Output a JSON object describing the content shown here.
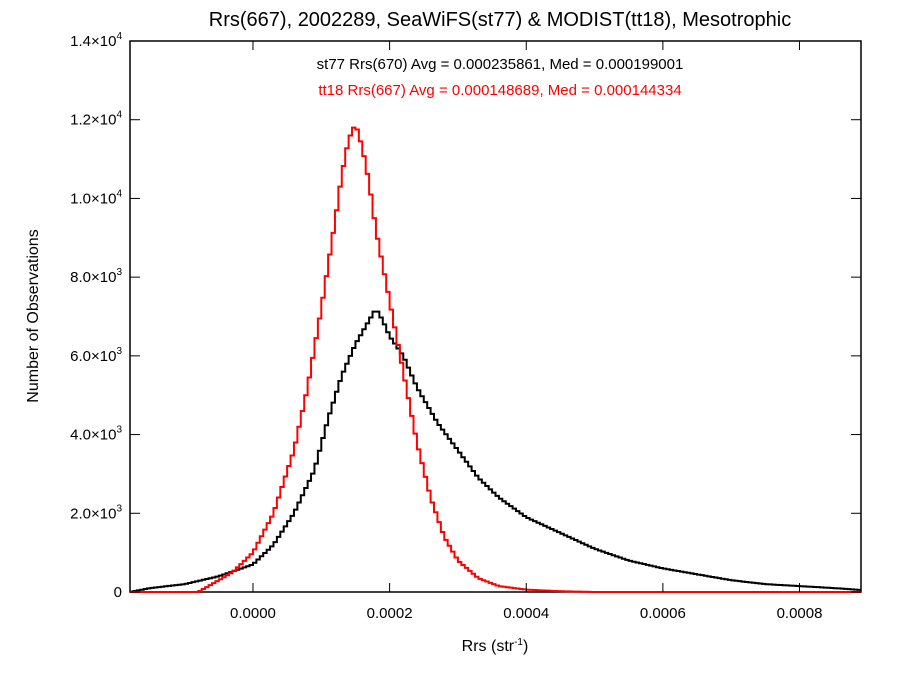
{
  "chart_data": {
    "type": "line",
    "title": "Rrs(667), 2002289, SeaWiFS(st77) & MODIST(tt18), Mesotrophic",
    "xlabel_base": "Rrs (str",
    "xlabel_sup": "-1",
    "xlabel_close": ")",
    "ylabel": "Number of Observations",
    "xlim": [
      -0.00018,
      0.00089
    ],
    "ylim": [
      0,
      14000
    ],
    "x_ticks": [
      {
        "value": 0.0,
        "label": "0.0000"
      },
      {
        "value": 0.0002,
        "label": "0.0002"
      },
      {
        "value": 0.0004,
        "label": "0.0004"
      },
      {
        "value": 0.0006,
        "label": "0.0006"
      },
      {
        "value": 0.0008,
        "label": "0.0008"
      }
    ],
    "y_ticks": [
      {
        "value": 0,
        "mant": "0",
        "exp": ""
      },
      {
        "value": 2000,
        "mant": "2.0×10",
        "exp": "3"
      },
      {
        "value": 4000,
        "mant": "4.0×10",
        "exp": "3"
      },
      {
        "value": 6000,
        "mant": "6.0×10",
        "exp": "3"
      },
      {
        "value": 8000,
        "mant": "8.0×10",
        "exp": "3"
      },
      {
        "value": 10000,
        "mant": "1.0×10",
        "exp": "4"
      },
      {
        "value": 12000,
        "mant": "1.2×10",
        "exp": "4"
      },
      {
        "value": 14000,
        "mant": "1.4×10",
        "exp": "4"
      }
    ],
    "legend": [
      {
        "text": "st77 Rrs(670) Avg = 0.000235861, Med = 0.000199001",
        "color": "#000000"
      },
      {
        "text": "tt18 Rrs(667) Avg = 0.000148689, Med = 0.000144334",
        "color": "#ff0000"
      }
    ],
    "series": [
      {
        "color": "#000000",
        "points": [
          [
            -0.00018,
            0
          ],
          [
            -0.00015,
            100
          ],
          [
            -0.0001,
            200
          ],
          [
            -5e-05,
            400
          ],
          [
            0.0,
            700
          ],
          [
            3e-05,
            1200
          ],
          [
            6e-05,
            2000
          ],
          [
            9e-05,
            3100
          ],
          [
            0.00011,
            4400
          ],
          [
            0.00013,
            5500
          ],
          [
            0.00015,
            6300
          ],
          [
            0.00017,
            6900
          ],
          [
            0.00018,
            7200
          ],
          [
            0.00019,
            6900
          ],
          [
            0.0002,
            6500
          ],
          [
            0.00022,
            6000
          ],
          [
            0.00024,
            5200
          ],
          [
            0.00027,
            4300
          ],
          [
            0.0003,
            3600
          ],
          [
            0.00033,
            2900
          ],
          [
            0.00036,
            2400
          ],
          [
            0.0004,
            1900
          ],
          [
            0.00045,
            1500
          ],
          [
            0.0005,
            1100
          ],
          [
            0.00055,
            800
          ],
          [
            0.0006,
            600
          ],
          [
            0.00065,
            450
          ],
          [
            0.0007,
            300
          ],
          [
            0.00075,
            200
          ],
          [
            0.0008,
            150
          ],
          [
            0.00085,
            100
          ],
          [
            0.00089,
            50
          ]
        ]
      },
      {
        "color": "#ff0000",
        "points": [
          [
            -0.00018,
            0
          ],
          [
            -8e-05,
            0
          ],
          [
            -6e-05,
            200
          ],
          [
            -3e-05,
            500
          ],
          [
            0.0,
            1000
          ],
          [
            3e-05,
            2000
          ],
          [
            6e-05,
            3600
          ],
          [
            8e-05,
            5200
          ],
          [
            0.0001,
            7200
          ],
          [
            0.00012,
            9400
          ],
          [
            0.00013,
            10600
          ],
          [
            0.00014,
            11500
          ],
          [
            0.00015,
            11900
          ],
          [
            0.00016,
            11300
          ],
          [
            0.00017,
            10400
          ],
          [
            0.00018,
            9200
          ],
          [
            0.0002,
            7400
          ],
          [
            0.00022,
            5600
          ],
          [
            0.00024,
            3800
          ],
          [
            0.00026,
            2400
          ],
          [
            0.00028,
            1400
          ],
          [
            0.0003,
            800
          ],
          [
            0.00033,
            350
          ],
          [
            0.00036,
            150
          ],
          [
            0.0004,
            60
          ],
          [
            0.00045,
            20
          ],
          [
            0.0005,
            0
          ],
          [
            0.00089,
            0
          ]
        ]
      }
    ]
  }
}
